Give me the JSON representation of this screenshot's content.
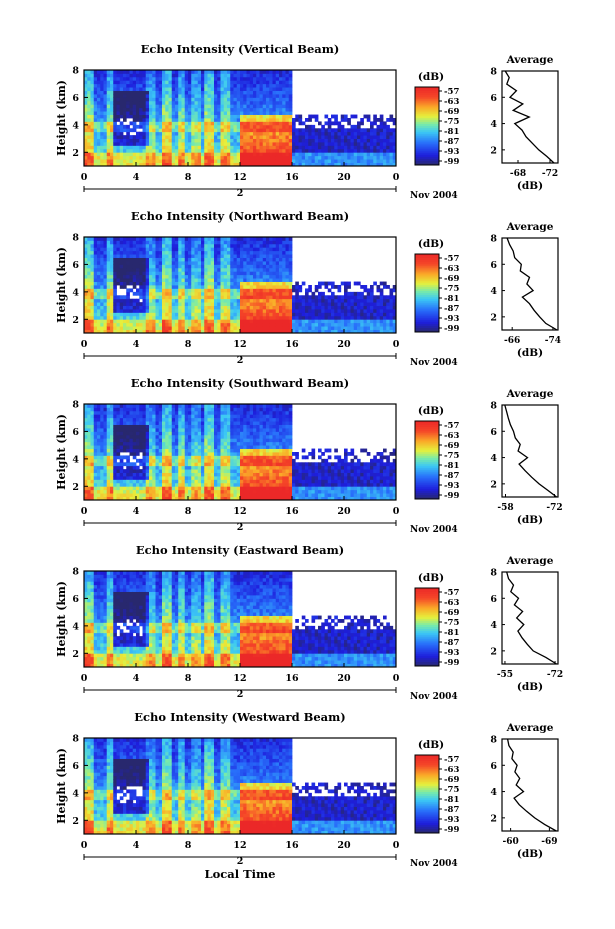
{
  "figure": {
    "xlabel": "Local Time",
    "date_day": "2",
    "date_label": "Nov 2004",
    "average_title": "Average",
    "average_xlabel": "(dB)",
    "colorbar_title": "(dB)",
    "colorbar_ticks": [
      "-57",
      "-63",
      "-69",
      "-75",
      "-81",
      "-87",
      "-93",
      "-99"
    ]
  },
  "chart_data": [
    {
      "type": "heatmap",
      "title": "Echo Intensity (Vertical Beam)",
      "ylabel": "Height (km)",
      "xlabel": "Local Time",
      "x_ticks": [
        "0",
        "4",
        "8",
        "12",
        "16",
        "20",
        "0"
      ],
      "y_ticks": [
        "2",
        "4",
        "6",
        "8"
      ],
      "xlim": [
        0,
        24
      ],
      "ylim": [
        1,
        8
      ],
      "clim": [
        -99,
        -57
      ],
      "colormap": "jet",
      "units": "dB",
      "profile": {
        "title": "Average",
        "xlabel": "(dB)",
        "x_ticks": [
          "-68",
          "-72"
        ],
        "xlim": [
          -66,
          -73
        ],
        "y_ticks": [
          "2",
          "4",
          "6",
          "8"
        ],
        "ylim": [
          1,
          8
        ],
        "height": [
          1.0,
          1.5,
          2.0,
          2.5,
          3.0,
          3.5,
          4.0,
          4.5,
          5.0,
          5.5,
          6.0,
          6.5,
          7.0,
          7.5,
          8.0
        ],
        "db": [
          -72.5,
          -71.6,
          -70.6,
          -69.8,
          -69.0,
          -68.5,
          -67.6,
          -69.4,
          -67.4,
          -68.6,
          -67.0,
          -67.8,
          -66.6,
          -66.9,
          -66.4
        ]
      }
    },
    {
      "type": "heatmap",
      "title": "Echo Intensity (Northward Beam)",
      "ylabel": "Height (km)",
      "xlabel": "Local Time",
      "x_ticks": [
        "0",
        "4",
        "8",
        "12",
        "16",
        "20",
        "0"
      ],
      "y_ticks": [
        "2",
        "4",
        "6",
        "8"
      ],
      "xlim": [
        0,
        24
      ],
      "ylim": [
        1,
        8
      ],
      "clim": [
        -99,
        -57
      ],
      "colormap": "jet",
      "units": "dB",
      "profile": {
        "title": "Average",
        "xlabel": "(dB)",
        "x_ticks": [
          "-66",
          "-74"
        ],
        "xlim": [
          -64,
          -75
        ],
        "y_ticks": [
          "2",
          "4",
          "6",
          "8"
        ],
        "ylim": [
          1,
          8
        ],
        "height": [
          1.0,
          1.5,
          2.0,
          2.5,
          3.0,
          3.5,
          4.0,
          4.5,
          5.0,
          5.5,
          6.0,
          6.5,
          7.0,
          7.5,
          8.0
        ],
        "db": [
          -74.8,
          -72.6,
          -71.4,
          -70.3,
          -69.4,
          -68.0,
          -70.1,
          -68.9,
          -69.4,
          -67.6,
          -67.8,
          -66.5,
          -66.2,
          -65.5,
          -65.0
        ]
      }
    },
    {
      "type": "heatmap",
      "title": "Echo Intensity (Southward Beam)",
      "ylabel": "Height (km)",
      "xlabel": "Local Time",
      "x_ticks": [
        "0",
        "4",
        "8",
        "12",
        "16",
        "20",
        "0"
      ],
      "y_ticks": [
        "2",
        "4",
        "6",
        "8"
      ],
      "xlim": [
        0,
        24
      ],
      "ylim": [
        1,
        8
      ],
      "clim": [
        -99,
        -57
      ],
      "colormap": "jet",
      "units": "dB",
      "profile": {
        "title": "Average",
        "xlabel": "(dB)",
        "x_ticks": [
          "-58",
          "-72"
        ],
        "xlim": [
          -57,
          -73
        ],
        "y_ticks": [
          "2",
          "4",
          "6",
          "8"
        ],
        "ylim": [
          1,
          8
        ],
        "height": [
          1.0,
          1.5,
          2.0,
          2.5,
          3.0,
          3.5,
          4.0,
          4.5,
          5.0,
          5.5,
          6.0,
          6.5,
          7.0,
          7.5,
          8.0
        ],
        "db": [
          -72.6,
          -70.1,
          -67.6,
          -65.5,
          -63.6,
          -61.9,
          -64.3,
          -61.6,
          -62.2,
          -60.8,
          -60.3,
          -59.4,
          -58.8,
          -58.3,
          -57.8
        ]
      }
    },
    {
      "type": "heatmap",
      "title": "Echo Intensity (Eastward Beam)",
      "ylabel": "Height (km)",
      "xlabel": "Local Time",
      "x_ticks": [
        "0",
        "4",
        "8",
        "12",
        "16",
        "20",
        "0"
      ],
      "y_ticks": [
        "2",
        "4",
        "6",
        "8"
      ],
      "xlim": [
        0,
        24
      ],
      "ylim": [
        1,
        8
      ],
      "clim": [
        -99,
        -57
      ],
      "colormap": "jet",
      "units": "dB",
      "profile": {
        "title": "Average",
        "xlabel": "(dB)",
        "x_ticks": [
          "-55",
          "-72"
        ],
        "xlim": [
          -54,
          -73
        ],
        "y_ticks": [
          "2",
          "4",
          "6",
          "8"
        ],
        "ylim": [
          1,
          8
        ],
        "height": [
          1.0,
          1.5,
          2.0,
          2.5,
          3.0,
          3.5,
          4.0,
          4.5,
          5.0,
          5.5,
          6.0,
          6.5,
          7.0,
          7.5,
          8.0
        ],
        "db": [
          -72.5,
          -68.9,
          -64.6,
          -62.6,
          -60.8,
          -59.4,
          -61.4,
          -59.0,
          -61.0,
          -58.2,
          -59.6,
          -57.0,
          -57.9,
          -56.2,
          -55.6
        ]
      }
    },
    {
      "type": "heatmap",
      "title": "Echo Intensity (Westward Beam)",
      "ylabel": "Height (km)",
      "xlabel": "Local Time",
      "x_ticks": [
        "0",
        "4",
        "8",
        "12",
        "16",
        "20",
        "0"
      ],
      "y_ticks": [
        "2",
        "4",
        "6",
        "8"
      ],
      "xlim": [
        0,
        24
      ],
      "ylim": [
        1,
        8
      ],
      "clim": [
        -99,
        -57
      ],
      "colormap": "jet",
      "units": "dB",
      "profile": {
        "title": "Average",
        "xlabel": "(dB)",
        "x_ticks": [
          "-60",
          "-69"
        ],
        "xlim": [
          -58,
          -71
        ],
        "y_ticks": [
          "2",
          "4",
          "6",
          "8"
        ],
        "ylim": [
          1,
          8
        ],
        "height": [
          1.0,
          1.5,
          2.0,
          2.5,
          3.0,
          3.5,
          4.0,
          4.5,
          5.0,
          5.5,
          6.0,
          6.5,
          7.0,
          7.5,
          8.0
        ],
        "db": [
          -70.6,
          -67.9,
          -65.6,
          -63.7,
          -62.0,
          -60.8,
          -63.0,
          -61.3,
          -62.1,
          -61.0,
          -61.5,
          -60.3,
          -60.6,
          -59.6,
          -59.3
        ]
      }
    }
  ]
}
